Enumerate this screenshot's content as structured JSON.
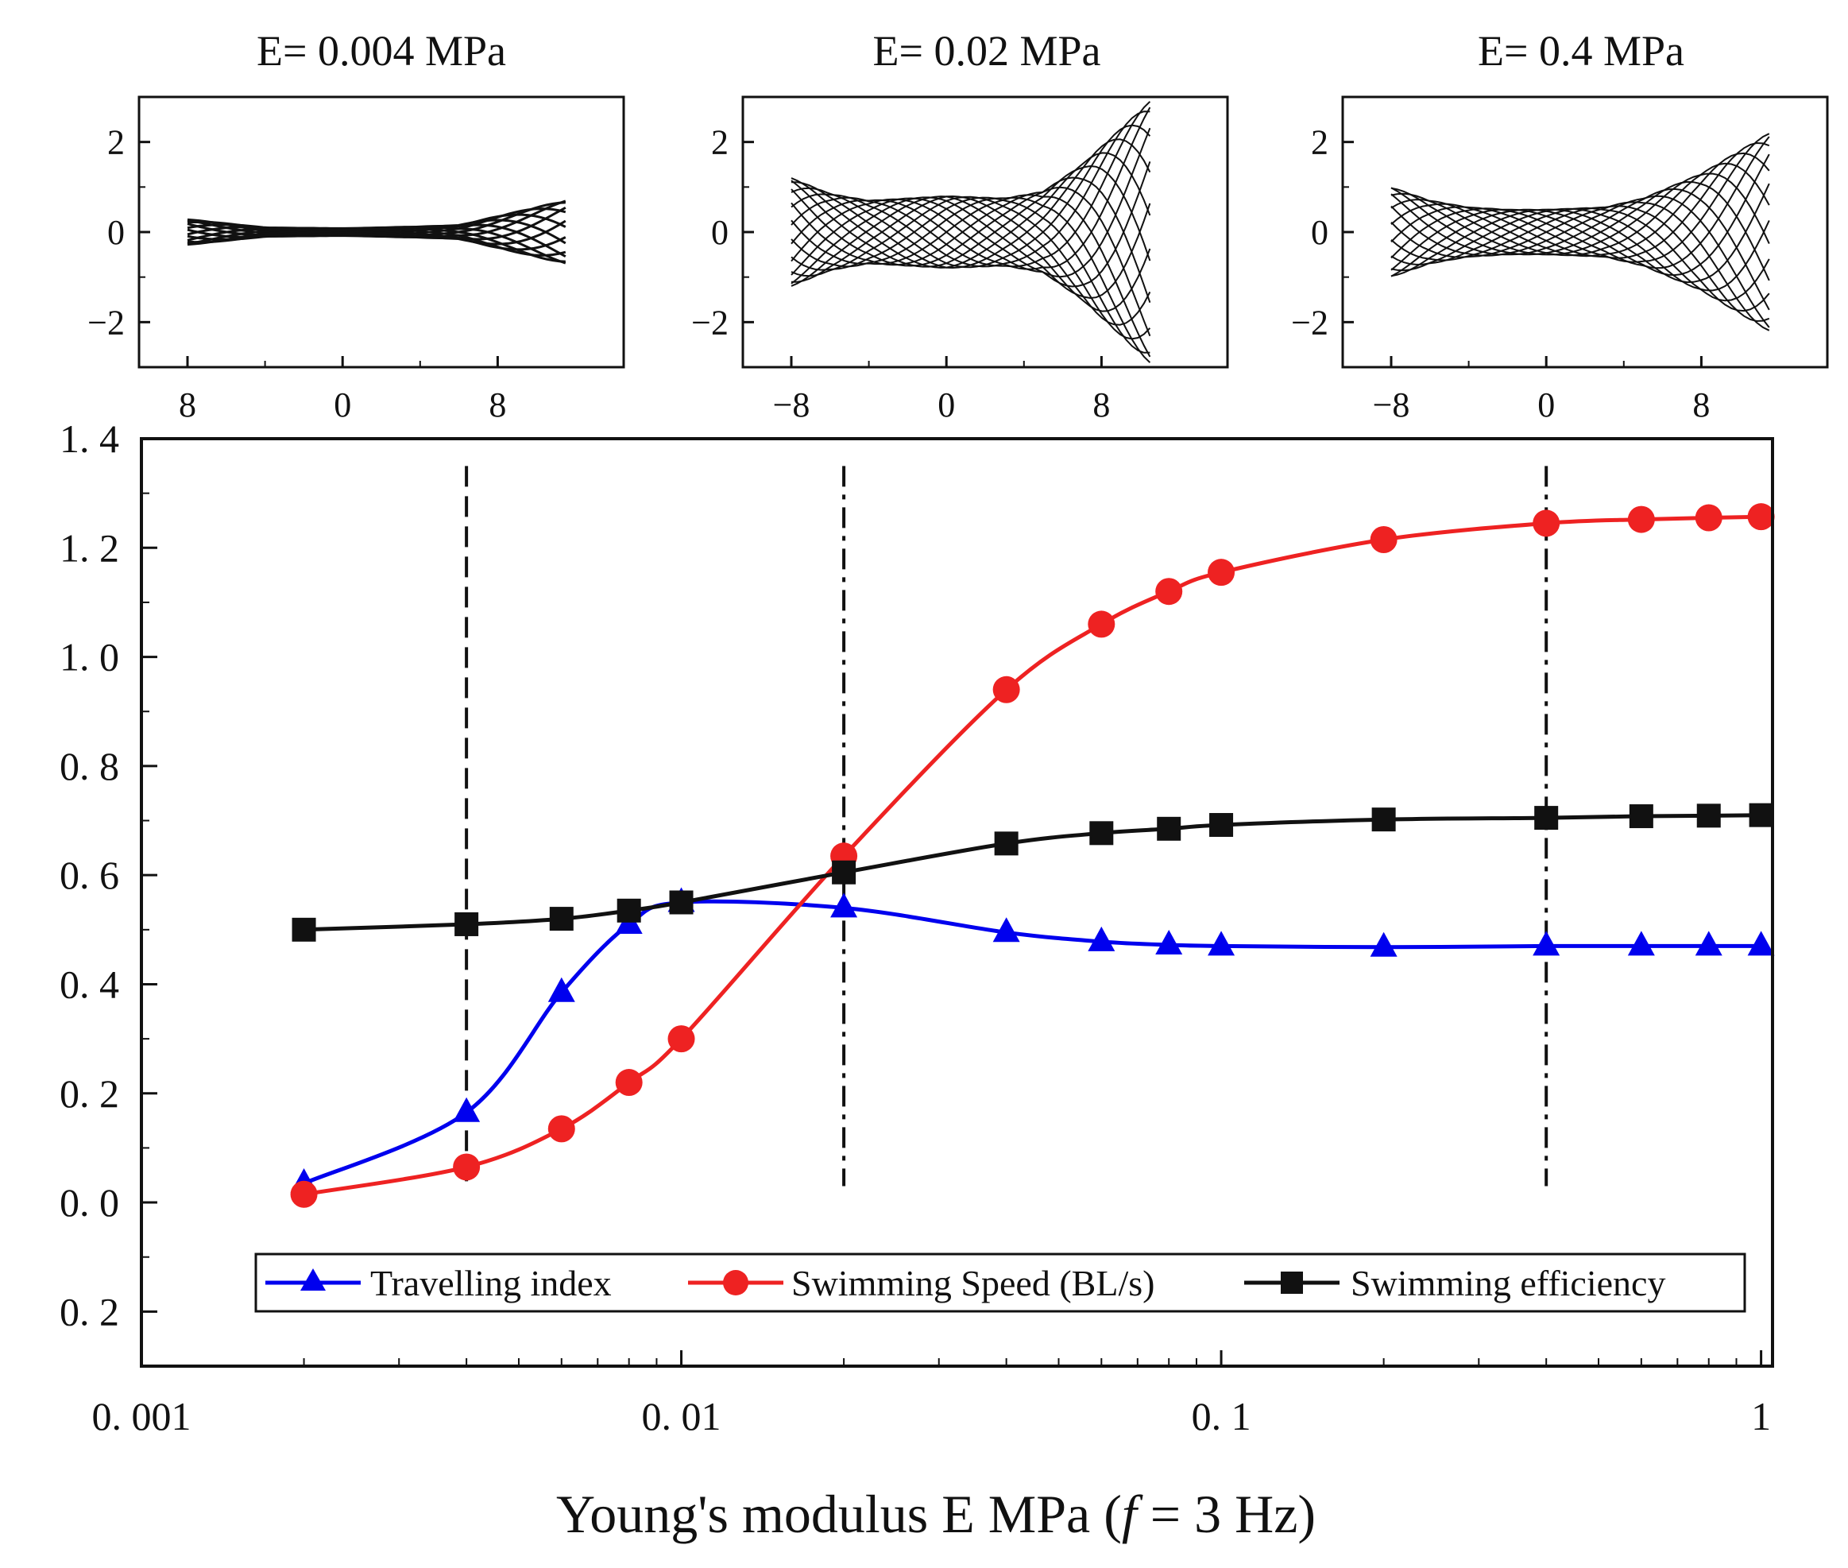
{
  "chart_data": [
    {
      "type": "line",
      "panel": "top-left",
      "title": "E= 0.004 MPa",
      "xlim": [
        -10.5,
        14.5
      ],
      "ylim": [
        -3,
        3
      ],
      "xticks": [
        -8,
        0,
        8
      ],
      "xtick_labels": [
        "8",
        "0",
        "8"
      ],
      "yticks": [
        -2,
        0,
        2
      ],
      "ytick_labels": [
        "−2",
        "0",
        "2"
      ],
      "x_start": -8,
      "x_end": 11.5,
      "envelope": [
        [
          -8,
          0.28
        ],
        [
          -4,
          0.1
        ],
        [
          0,
          0.08
        ],
        [
          4,
          0.12
        ],
        [
          6,
          0.15
        ],
        [
          8,
          0.35
        ],
        [
          11.5,
          0.7
        ]
      ],
      "num_lines": 12
    },
    {
      "type": "line",
      "panel": "top-middle",
      "title": "E= 0.02 MPa",
      "xlim": [
        -10.5,
        14.5
      ],
      "ylim": [
        -3,
        3
      ],
      "xticks": [
        -8,
        0,
        8
      ],
      "xtick_labels": [
        "−8",
        "0",
        "8"
      ],
      "yticks": [
        -2,
        0,
        2
      ],
      "ytick_labels": [
        "−2",
        "0",
        "2"
      ],
      "x_start": -8,
      "x_end": 10.5,
      "envelope": [
        [
          -8,
          1.2
        ],
        [
          -6,
          0.85
        ],
        [
          -4,
          0.7
        ],
        [
          -2,
          0.75
        ],
        [
          0,
          0.8
        ],
        [
          3,
          0.75
        ],
        [
          5,
          0.9
        ],
        [
          7,
          1.5
        ],
        [
          10.5,
          2.9
        ]
      ],
      "num_lines": 18
    },
    {
      "type": "line",
      "panel": "top-right",
      "title": "E= 0.4 MPa",
      "xlim": [
        -10.5,
        14.5
      ],
      "ylim": [
        -3,
        3
      ],
      "xticks": [
        -8,
        0,
        8
      ],
      "xtick_labels": [
        "−8",
        "0",
        "8"
      ],
      "yticks": [
        -2,
        0,
        2
      ],
      "ytick_labels": [
        "−2",
        "0",
        "2"
      ],
      "x_start": -8,
      "x_end": 11.5,
      "envelope": [
        [
          -8,
          1.0
        ],
        [
          -6,
          0.7
        ],
        [
          -4,
          0.55
        ],
        [
          -2,
          0.5
        ],
        [
          0,
          0.5
        ],
        [
          3,
          0.55
        ],
        [
          5,
          0.75
        ],
        [
          8,
          1.3
        ],
        [
          11.5,
          2.2
        ]
      ],
      "num_lines": 16
    },
    {
      "type": "line",
      "panel": "main",
      "title": "",
      "xlabel": "Young's modulus E MPa (",
      "xlabel_italic": "f",
      "xlabel_tail": " = 3 Hz)",
      "ylabel": "",
      "xscale": "log",
      "xlim": [
        0.001,
        1.05
      ],
      "ylim": [
        -0.3,
        1.4
      ],
      "xticks": [
        0.001,
        0.01,
        0.1,
        1
      ],
      "xtick_labels": [
        "0. 001",
        "0. 01",
        "0. 1",
        "1"
      ],
      "yticks": [
        1.4,
        1.2,
        1.0,
        0.8,
        0.6,
        0.4,
        0.2,
        0.0,
        -0.2
      ],
      "ytick_labels": [
        "1. 4",
        "1. 2",
        "1. 0",
        "0. 8",
        "0. 6",
        "0. 4",
        "0. 2",
        "0. 0",
        "0. 2"
      ],
      "legend_position": "bottom",
      "series": [
        {
          "name": "Travelling index",
          "color": "#0000ee",
          "marker": "triangle",
          "x": [
            0.002,
            0.004,
            0.006,
            0.008,
            0.01,
            0.02,
            0.04,
            0.06,
            0.08,
            0.1,
            0.2,
            0.4,
            0.6,
            0.8,
            1.0
          ],
          "values": [
            0.035,
            0.165,
            0.385,
            0.51,
            0.55,
            0.54,
            0.495,
            0.478,
            0.472,
            0.47,
            0.468,
            0.47,
            0.47,
            0.47,
            0.47
          ]
        },
        {
          "name": "Swimming Speed (BL/s)",
          "color": "#ee2222",
          "marker": "circle",
          "x": [
            0.002,
            0.004,
            0.006,
            0.008,
            0.01,
            0.02,
            0.04,
            0.06,
            0.08,
            0.1,
            0.2,
            0.4,
            0.6,
            0.8,
            1.0
          ],
          "values": [
            0.015,
            0.065,
            0.135,
            0.22,
            0.3,
            0.635,
            0.94,
            1.06,
            1.12,
            1.155,
            1.215,
            1.245,
            1.252,
            1.255,
            1.257
          ]
        },
        {
          "name": "Swimming efficiency",
          "color": "#111111",
          "marker": "square",
          "x": [
            0.002,
            0.004,
            0.006,
            0.008,
            0.01,
            0.02,
            0.04,
            0.06,
            0.08,
            0.1,
            0.2,
            0.4,
            0.6,
            0.8,
            1.0
          ],
          "values": [
            0.5,
            0.51,
            0.52,
            0.535,
            0.55,
            0.605,
            0.658,
            0.677,
            0.685,
            0.692,
            0.702,
            0.705,
            0.708,
            0.709,
            0.71
          ]
        }
      ],
      "reference_lines": [
        {
          "x": 0.004,
          "style": "dashed"
        },
        {
          "x": 0.02,
          "style": "dash-dot"
        },
        {
          "x": 0.4,
          "style": "dash-dot"
        }
      ]
    }
  ]
}
